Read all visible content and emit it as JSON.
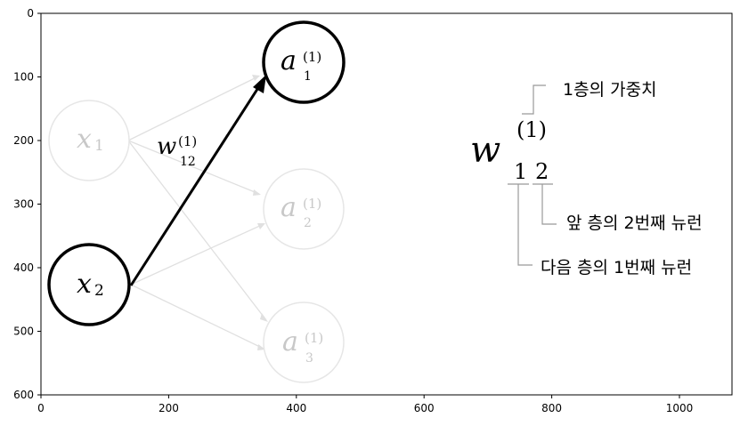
{
  "axes": {
    "x_ticks": [
      "0",
      "200",
      "400",
      "600",
      "800",
      "1000"
    ],
    "y_ticks": [
      "0",
      "100",
      "200",
      "300",
      "400",
      "500",
      "600"
    ]
  },
  "nodes": [
    {
      "id": "x1",
      "base": "x",
      "sub": "1",
      "sup": "",
      "highlight": false
    },
    {
      "id": "x2",
      "base": "x",
      "sub": "2",
      "sup": "",
      "highlight": true
    },
    {
      "id": "a1",
      "base": "a",
      "sub": "1",
      "sup": "(1)",
      "highlight": true
    },
    {
      "id": "a2",
      "base": "a",
      "sub": "2",
      "sup": "(1)",
      "highlight": false
    },
    {
      "id": "a3",
      "base": "a",
      "sub": "3",
      "sup": "(1)",
      "highlight": false
    }
  ],
  "weight_label": {
    "base": "w",
    "sup": "(1)",
    "sub": "12"
  },
  "legend": {
    "symbol": "w",
    "superscript": "(1)",
    "sub_first": "1",
    "sub_second": "2",
    "label_layer": "1층의 가중치",
    "label_prev": "앞 층의 2번째 뉴런",
    "label_next": "다음 층의 1번째 뉴런"
  }
}
